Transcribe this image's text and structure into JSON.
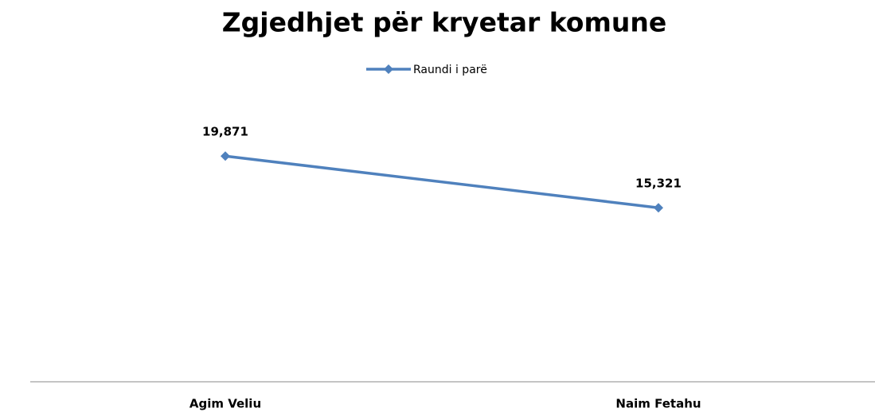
{
  "chart_data": {
    "type": "line",
    "title": "Zgjedhjet për kryetar komune",
    "categories": [
      "Agim Veliu",
      "Naim Fetahu"
    ],
    "series": [
      {
        "name": "Raundi i parë",
        "color": "#4f81bd",
        "values": [
          19871,
          15321
        ],
        "value_labels": [
          "19,871",
          "15,321"
        ]
      }
    ],
    "ylim": [
      0,
      25000
    ],
    "legend": "top"
  }
}
